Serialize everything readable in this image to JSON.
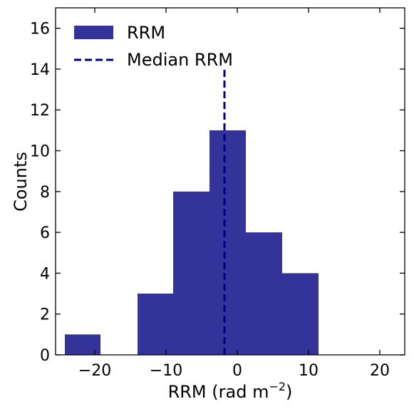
{
  "chart_data": {
    "type": "bar",
    "title": "",
    "xlabel": "RRM (rad m",
    "xlabel_sup": "−2",
    "xlabel_close": ")",
    "ylabel": "Counts",
    "xlim": [
      -25.5,
      23.5
    ],
    "ylim": [
      0,
      17
    ],
    "xticks": [
      -20,
      -10,
      0,
      10,
      20
    ],
    "xtick_labels": [
      "−20",
      "−10",
      "0",
      "10",
      "20"
    ],
    "yticks": [
      0,
      2,
      4,
      6,
      8,
      10,
      12,
      14,
      16
    ],
    "ytick_labels": [
      "0",
      "2",
      "4",
      "6",
      "8",
      "10",
      "12",
      "14",
      "16"
    ],
    "bins": [
      {
        "x0": -24.2,
        "x1": -19.2,
        "count": 1
      },
      {
        "x0": -19.2,
        "x1": -14.0,
        "count": 0
      },
      {
        "x0": -14.0,
        "x1": -9.0,
        "count": 3
      },
      {
        "x0": -9.0,
        "x1": -3.9,
        "count": 8
      },
      {
        "x0": -3.9,
        "x1": 1.2,
        "count": 11
      },
      {
        "x0": 1.2,
        "x1": 6.3,
        "count": 6
      },
      {
        "x0": 6.3,
        "x1": 11.4,
        "count": 4
      }
    ],
    "median_line": {
      "x": -1.8,
      "y_top": 14
    },
    "legend": [
      {
        "label": "RRM",
        "kind": "patch"
      },
      {
        "label": "Median RRM",
        "kind": "dashed-line"
      }
    ],
    "legend_position": "upper-left",
    "grid": false,
    "colors": {
      "bar": "#333399",
      "median": "#00008b",
      "axis": "#000000"
    }
  }
}
